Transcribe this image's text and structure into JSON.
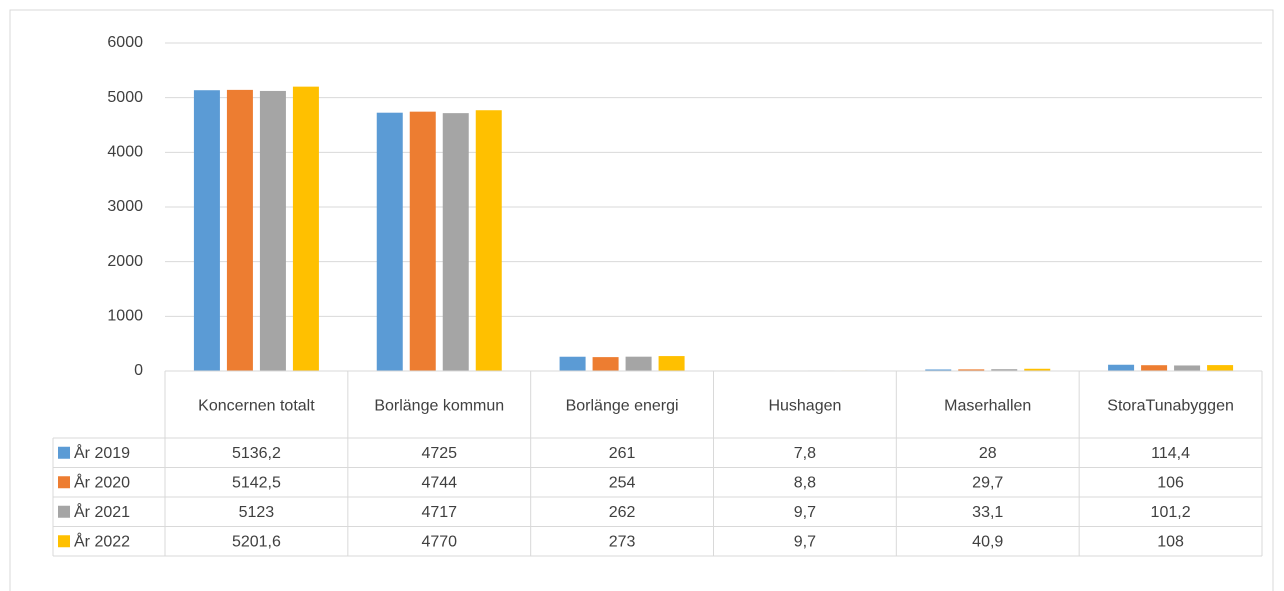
{
  "chart_data": {
    "type": "bar",
    "categories": [
      "Koncernen totalt",
      "Borlänge kommun",
      "Borlänge energi",
      "Hushagen",
      "Maserhallen",
      "StoraTunabyggen"
    ],
    "series": [
      {
        "name": "År 2019",
        "color": "#5b9bd5",
        "values": [
          5136.2,
          4725,
          261,
          7.8,
          28,
          114.4
        ],
        "value_labels": [
          "5136,2",
          "4725",
          "261",
          "7,8",
          "28",
          "114,4"
        ]
      },
      {
        "name": "År 2020",
        "color": "#ed7d31",
        "values": [
          5142.5,
          4744,
          254,
          8.8,
          29.7,
          106
        ],
        "value_labels": [
          "5142,5",
          "4744",
          "254",
          "8,8",
          "29,7",
          "106"
        ]
      },
      {
        "name": "År 2021",
        "color": "#a5a5a5",
        "values": [
          5123,
          4717,
          262,
          9.7,
          33.1,
          101.2
        ],
        "value_labels": [
          "5123",
          "4717",
          "262",
          "9,7",
          "33,1",
          "101,2"
        ]
      },
      {
        "name": "År 2022",
        "color": "#ffc000",
        "values": [
          5201.6,
          4770,
          273,
          9.7,
          40.9,
          108
        ],
        "value_labels": [
          "5201,6",
          "4770",
          "273",
          "9,7",
          "40,9",
          "108"
        ]
      }
    ],
    "ylim": [
      0,
      6000
    ],
    "yticks": [
      0,
      1000,
      2000,
      3000,
      4000,
      5000,
      6000
    ],
    "grid": true
  }
}
